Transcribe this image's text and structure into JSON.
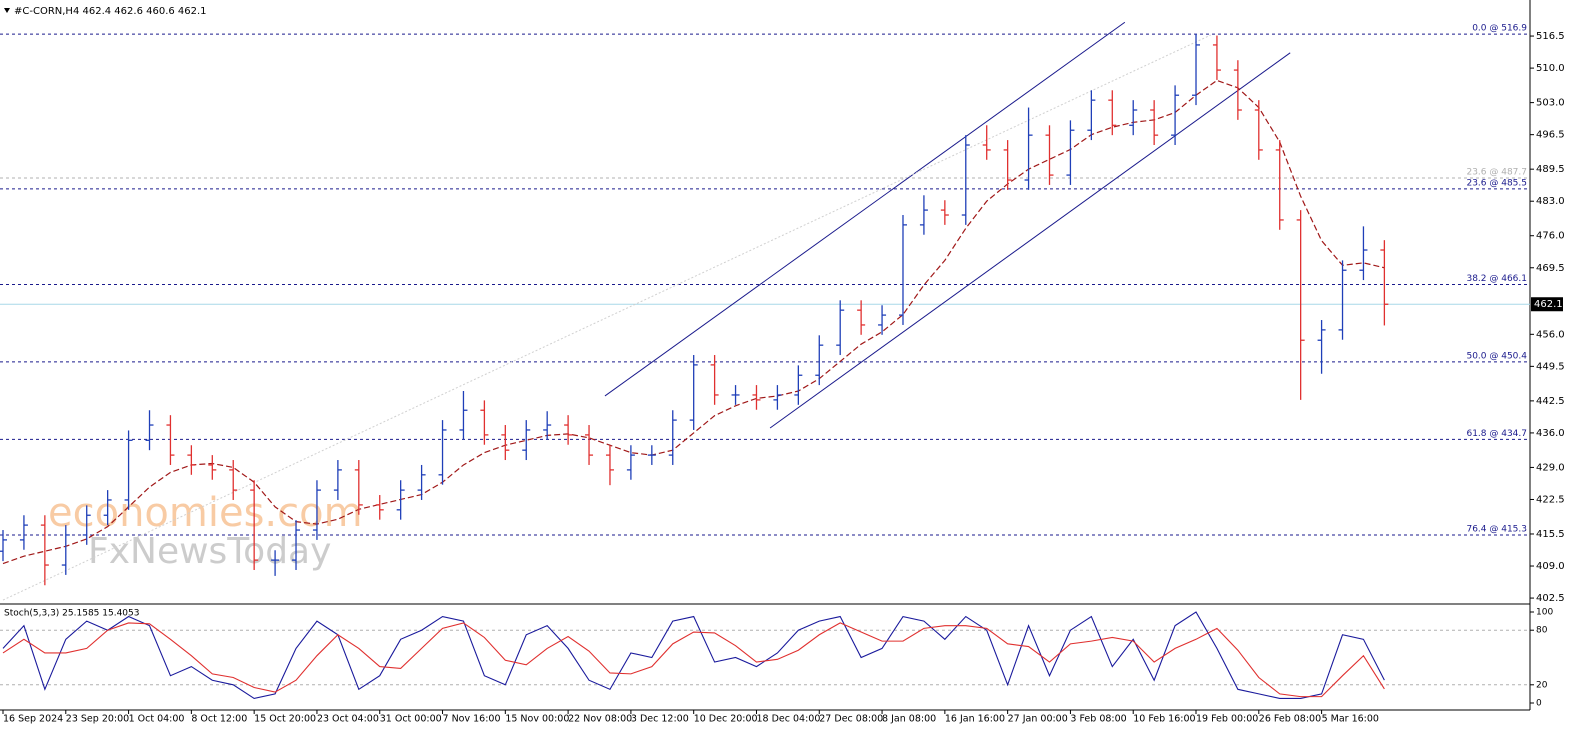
{
  "chart_data": {
    "type": "ohlc",
    "title": "#C-CORN,H4  462.4 462.6 460.6 462.1",
    "watermark": [
      "economies.com",
      "FxNewsToday"
    ],
    "categories": [
      "16 Sep 2024",
      null,
      null,
      "23 Sep 20:00",
      null,
      null,
      "1 Oct 04:00",
      null,
      null,
      "8 Oct 12:00",
      null,
      null,
      "15 Oct 20:00",
      null,
      null,
      "23 Oct 04:00",
      null,
      null,
      "31 Oct 00:00",
      null,
      null,
      "7 Nov 16:00",
      null,
      null,
      "15 Nov 00:00",
      null,
      null,
      "22 Nov 08:00",
      null,
      null,
      "3 Dec 12:00",
      null,
      null,
      "10 Dec 20:00",
      null,
      null,
      "18 Dec 04:00",
      null,
      null,
      "27 Dec 08:00",
      null,
      null,
      "8 Jan 08:00",
      null,
      null,
      "16 Jan 16:00",
      null,
      null,
      "27 Jan 00:00",
      null,
      null,
      "3 Feb 08:00",
      null,
      null,
      "10 Feb 16:00",
      null,
      null,
      "19 Feb 00:00",
      null,
      null,
      "26 Feb 08:00",
      null,
      null,
      "5 Mar 16:00",
      null,
      null,
      null
    ],
    "open": [
      412.0,
      414.3,
      417.3,
      409.2,
      415.3,
      419.3,
      422.4,
      434.5,
      437.6,
      431.5,
      429.5,
      428.5,
      424.4,
      410.2,
      410.2,
      416.3,
      424.4,
      428.5,
      421.4,
      420.4,
      424.4,
      427.5,
      436.6,
      440.6,
      435.6,
      432.5,
      436.6,
      437.6,
      435.6,
      431.5,
      428.5,
      431.5,
      431.5,
      438.6,
      449.8,
      443.7,
      443.7,
      442.7,
      443.7,
      447.7,
      453.8,
      460.9,
      457.9,
      459.9,
      478.2,
      481.2,
      480.2,
      494.4,
      493.4,
      487.3,
      496.4,
      488.3,
      497.4,
      503.5,
      498.4,
      501.5,
      496.4,
      504.5,
      514.7,
      509.6,
      501.5,
      493.4,
      479.2,
      454.8,
      456.9,
      469.0,
      473.1
    ],
    "high": [
      416.3,
      419.3,
      419.3,
      417.3,
      421.3,
      424.4,
      436.5,
      440.6,
      439.6,
      433.5,
      431.5,
      430.5,
      426.4,
      412.2,
      418.3,
      426.4,
      430.5,
      430.5,
      423.4,
      426.4,
      429.5,
      438.6,
      444.5,
      442.6,
      437.6,
      438.6,
      440.4,
      439.6,
      437.6,
      433.5,
      433.5,
      433.5,
      440.6,
      451.8,
      451.8,
      445.7,
      445.7,
      445.7,
      449.7,
      455.8,
      462.9,
      462.9,
      461.9,
      480.2,
      484.2,
      483.2,
      496.4,
      498.4,
      495.4,
      502.0,
      498.4,
      499.4,
      505.5,
      505.5,
      503.5,
      503.5,
      506.5,
      516.9,
      516.6,
      511.6,
      503.5,
      495.4,
      481.2,
      458.9,
      471.0,
      477.9,
      475.1
    ],
    "low": [
      410.0,
      412.3,
      405.1,
      407.2,
      413.3,
      417.3,
      420.4,
      432.5,
      429.5,
      427.5,
      426.5,
      422.4,
      408.2,
      407.0,
      408.2,
      414.3,
      422.4,
      419.4,
      418.4,
      418.4,
      422.4,
      425.5,
      434.6,
      433.6,
      430.5,
      430.5,
      434.6,
      433.6,
      429.5,
      425.4,
      426.5,
      429.5,
      429.5,
      436.6,
      441.7,
      441.7,
      440.7,
      440.7,
      441.7,
      445.7,
      451.8,
      455.9,
      455.9,
      457.9,
      476.2,
      478.2,
      478.2,
      491.4,
      485.3,
      485.3,
      486.3,
      486.3,
      495.4,
      496.4,
      496.4,
      494.4,
      494.4,
      502.5,
      507.6,
      499.5,
      491.4,
      477.2,
      442.7,
      448.0,
      454.9,
      467.0,
      457.8
    ],
    "close": [
      414.3,
      417.3,
      409.2,
      415.3,
      419.3,
      422.4,
      434.5,
      437.6,
      431.5,
      429.5,
      428.5,
      424.4,
      410.2,
      410.2,
      416.3,
      424.4,
      428.5,
      421.4,
      420.4,
      424.4,
      427.5,
      436.6,
      440.6,
      435.6,
      432.5,
      436.6,
      437.6,
      435.6,
      431.5,
      428.5,
      431.5,
      431.5,
      438.6,
      449.8,
      443.7,
      443.7,
      442.7,
      443.7,
      447.7,
      453.8,
      460.9,
      457.9,
      459.9,
      478.2,
      481.2,
      480.2,
      494.4,
      493.4,
      487.3,
      496.4,
      488.3,
      497.4,
      503.5,
      498.4,
      501.5,
      496.4,
      504.5,
      514.7,
      509.6,
      501.5,
      493.4,
      479.2,
      454.8,
      456.9,
      469.0,
      473.1,
      462.1
    ],
    "up_color": "#1f3fb8",
    "down_color": "#e0302f",
    "ma": {
      "color": "#a01818",
      "values": [
        409.5,
        411.0,
        412.0,
        413.0,
        414.5,
        417.0,
        421.0,
        425.0,
        428.0,
        429.5,
        429.8,
        429.0,
        426.0,
        421.0,
        418.0,
        417.5,
        418.5,
        420.5,
        421.5,
        422.5,
        423.5,
        426.0,
        429.5,
        432.0,
        433.5,
        434.5,
        435.5,
        435.8,
        435.0,
        433.5,
        432.0,
        431.5,
        432.5,
        436.0,
        439.5,
        441.5,
        443.0,
        443.5,
        444.5,
        447.0,
        450.5,
        454.0,
        456.5,
        460.0,
        466.0,
        471.0,
        477.5,
        483.0,
        486.5,
        489.5,
        491.5,
        493.5,
        496.5,
        498.0,
        499.0,
        499.5,
        501.0,
        504.5,
        507.5,
        506.0,
        502.0,
        495.0,
        484.0,
        475.0,
        470.0,
        470.5,
        469.5
      ]
    },
    "ylim": [
      401.5,
      522.8
    ],
    "yticks": [
      516.5,
      {
        "value": 510,
        "label": "510.0"
      },
      {
        "value": 503,
        "label": "503.0"
      },
      496.5,
      489.5,
      {
        "value": 483,
        "label": "483.0"
      },
      {
        "value": 476,
        "label": "476.0"
      },
      469.5,
      {
        "value": 456,
        "label": "456.0"
      },
      449.5,
      442.5,
      {
        "value": 436,
        "label": "436.0"
      },
      {
        "value": 429,
        "label": "429.0"
      },
      422.5,
      415.5,
      {
        "value": 409,
        "label": "409.0"
      },
      402.5
    ],
    "last_price": 462.1,
    "levels": [
      {
        "value": 516.9,
        "label": "0.0 @ 516.9",
        "color": "#1a1a8c"
      },
      {
        "value": 487.7,
        "label": "23.6 @ 487.7",
        "color": "#b0b0b0"
      },
      {
        "value": 485.5,
        "label": "23.6 @ 485.5",
        "color": "#1a1a8c"
      },
      {
        "value": 466.1,
        "label": "38.2 @ 466.1",
        "color": "#1a1a8c"
      },
      {
        "value": 450.4,
        "label": "50.0 @ 450.4",
        "color": "#1a1a8c"
      },
      {
        "value": 434.7,
        "label": "61.8 @ 434.7",
        "color": "#1a1a8c"
      },
      {
        "value": 415.3,
        "label": "76.4 @ 415.3",
        "color": "#1a1a8c"
      }
    ],
    "trendlines": [
      {
        "x": [
          28.76,
          53.6
        ],
        "y": [
          443.5,
          519.3
        ],
        "color": "#1a1a8c"
      },
      {
        "x": [
          36.65,
          61.5
        ],
        "y": [
          437.0,
          513.1
        ],
        "color": "#1a1a8c"
      },
      {
        "x": [
          0,
          57.7
        ],
        "y": [
          402.1,
          516.7
        ],
        "color": "#d0d0d0"
      }
    ],
    "stoch": {
      "label": "Stoch(5,3,3) 25.1585 15.4053",
      "ylim": [
        -7.7,
        107.7
      ],
      "yticks": [
        100,
        80,
        20,
        0
      ],
      "levels": [
        80,
        20
      ],
      "series": [
        {
          "color": "#1a1a9c",
          "values": [
            60,
            85,
            15,
            70,
            90,
            80,
            95,
            85,
            30,
            40,
            25,
            20,
            5,
            10,
            60,
            90,
            75,
            15,
            30,
            70,
            80,
            95,
            90,
            30,
            20,
            75,
            85,
            60,
            25,
            15,
            55,
            50,
            90,
            95,
            45,
            50,
            40,
            55,
            80,
            90,
            95,
            50,
            60,
            95,
            90,
            70,
            95,
            80,
            20,
            85,
            30,
            80,
            95,
            40,
            70,
            25,
            85,
            100,
            60,
            15,
            10,
            5,
            5,
            10,
            75,
            70,
            25.1585
          ]
        },
        {
          "color": "#e0302f",
          "values": [
            55,
            70,
            55,
            55,
            60,
            80,
            88,
            87,
            70,
            52,
            32,
            28,
            17,
            12,
            25,
            52,
            75,
            60,
            40,
            38,
            60,
            82,
            88,
            72,
            47,
            42,
            60,
            73,
            57,
            33,
            32,
            40,
            65,
            78,
            77,
            63,
            45,
            48,
            58,
            75,
            88,
            78,
            68,
            68,
            82,
            85,
            85,
            82,
            65,
            62,
            45,
            65,
            68,
            72,
            68,
            45,
            60,
            70,
            82,
            58,
            28,
            10,
            7,
            7,
            30,
            52,
            15.4053
          ]
        }
      ]
    }
  }
}
